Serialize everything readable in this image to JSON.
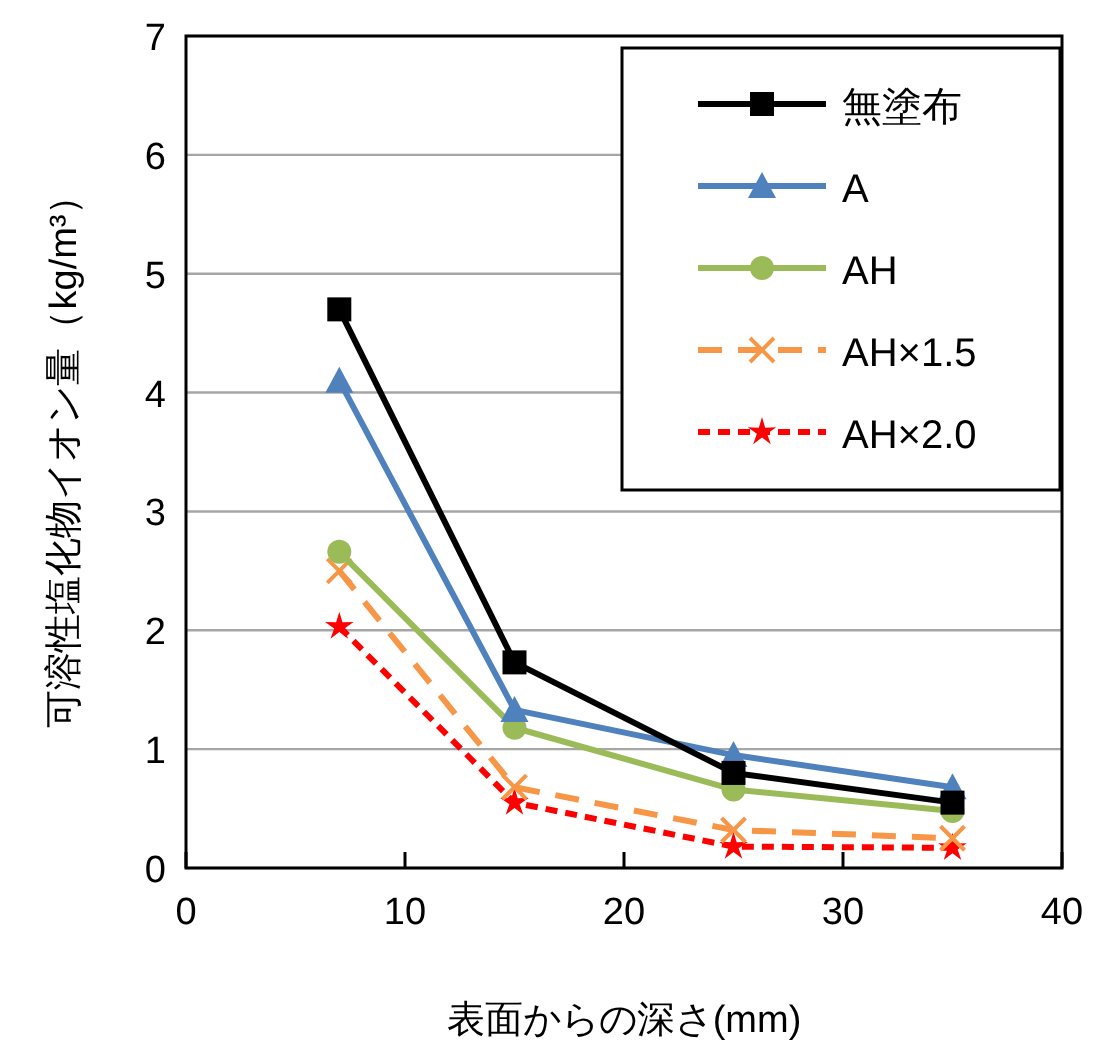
{
  "chart_data": {
    "type": "line",
    "xlabel": "表面からの深さ(mm)",
    "ylabel": "可溶性塩化物イオン量（kg/m³）",
    "x": [
      7,
      15,
      25,
      35
    ],
    "series": [
      {
        "name": "無塗布",
        "color": "#000000",
        "marker": "square",
        "line_style": "solid",
        "values": [
          4.7,
          1.73,
          0.8,
          0.55
        ]
      },
      {
        "name": "A",
        "color": "#4f81bd",
        "marker": "triangle",
        "line_style": "solid",
        "values": [
          4.1,
          1.33,
          0.95,
          0.68
        ]
      },
      {
        "name": "AH",
        "color": "#9bbb59",
        "marker": "circle",
        "line_style": "solid",
        "values": [
          2.66,
          1.18,
          0.66,
          0.48
        ]
      },
      {
        "name": "AH×1.5",
        "color": "#f79646",
        "marker": "cross",
        "line_style": "dashed",
        "values": [
          2.5,
          0.68,
          0.32,
          0.25
        ]
      },
      {
        "name": "AH×2.0",
        "color": "#ff0000",
        "marker": "star",
        "line_style": "dotted",
        "values": [
          2.03,
          0.55,
          0.18,
          0.17
        ]
      }
    ],
    "xlim": [
      0,
      40
    ],
    "xticks": [
      0,
      10,
      20,
      30,
      40
    ],
    "ylim": [
      0,
      7
    ],
    "yticks": [
      0,
      1,
      2,
      3,
      4,
      5,
      6,
      7
    ],
    "grid": "y",
    "legend": "top right"
  }
}
